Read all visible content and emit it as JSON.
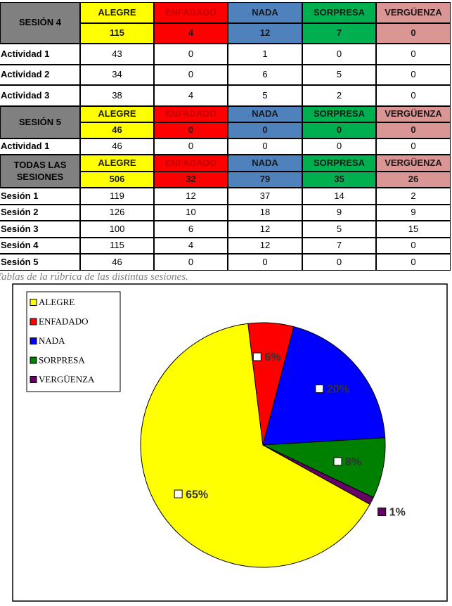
{
  "table": {
    "sections": [
      {
        "header": "SESIÓN 4",
        "columns": [
          "ALEGRE",
          "ENFADADO",
          "NADA",
          "SORPRESA",
          "VERGÜENZA"
        ],
        "totals": [
          115,
          4,
          12,
          7,
          0
        ],
        "rows": [
          {
            "label": "Actividad 1",
            "values": [
              43,
              0,
              1,
              0,
              0
            ]
          },
          {
            "label": "Actividad 2",
            "values": [
              34,
              0,
              6,
              5,
              0
            ]
          },
          {
            "label": "Actividad 3",
            "values": [
              38,
              4,
              5,
              2,
              0
            ]
          }
        ]
      },
      {
        "header": "SESIÓN 5",
        "columns": [
          "ALEGRE",
          "ENFADADO",
          "NADA",
          "SORPRESA",
          "VERGÜENZA"
        ],
        "totals": [
          46,
          0,
          0,
          0,
          0
        ],
        "rows": [
          {
            "label": "Actividad 1",
            "values": [
              46,
              0,
              0,
              0,
              0
            ]
          }
        ]
      },
      {
        "header": "TODAS LAS SESIONES",
        "columns": [
          "ALEGRE",
          "ENFADADO",
          "NADA",
          "SORPRESA",
          "VERGÜENZA"
        ],
        "totals": [
          506,
          32,
          79,
          35,
          26
        ],
        "rows": [
          {
            "label": "Sesión 1",
            "values": [
              119,
              12,
              37,
              14,
              2
            ]
          },
          {
            "label": "Sesión 2",
            "values": [
              126,
              10,
              18,
              9,
              9
            ]
          },
          {
            "label": "Sesión 3",
            "values": [
              100,
              6,
              12,
              5,
              15
            ]
          },
          {
            "label": "Sesión 4",
            "values": [
              115,
              4,
              12,
              7,
              0
            ]
          },
          {
            "label": "Sesión 5",
            "values": [
              46,
              0,
              0,
              0,
              0
            ]
          }
        ]
      }
    ]
  },
  "caption": "Tablas de la rúbrica de las distintas sesiones.",
  "chart_data": {
    "type": "pie",
    "categories": [
      "ALEGRE",
      "ENFADADO",
      "NADA",
      "SORPRESA",
      "VERGÜENZA"
    ],
    "values": [
      65,
      6,
      20,
      8,
      1
    ],
    "value_labels": [
      "65%",
      "6%",
      "20%",
      "8%",
      "1%"
    ],
    "colors": [
      "#ffff00",
      "#ff0000",
      "#0000ff",
      "#008000",
      "#660066"
    ],
    "legend": "top-left"
  }
}
